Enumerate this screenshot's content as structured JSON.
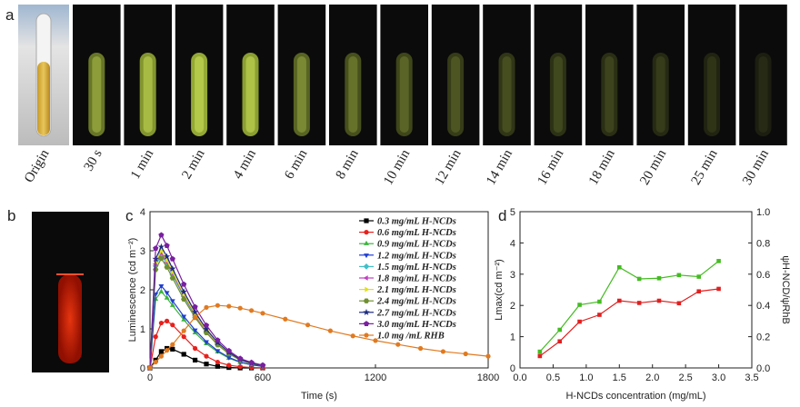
{
  "panel_labels": [
    "a",
    "b",
    "c",
    "d"
  ],
  "photo_labels": [
    "Origin",
    "30 s",
    "1 min",
    "2 min",
    "4 min",
    "6 min",
    "8 min",
    "10 min",
    "12 min",
    "14 min",
    "16 min",
    "18 min",
    "20 min",
    "25 min",
    "30 min"
  ],
  "chart_data": [
    {
      "type": "line",
      "xlabel": "Time (s)",
      "ylabel": "Luminescence (cd m⁻²)",
      "x": [
        0,
        30,
        60,
        90,
        120,
        180,
        240,
        300,
        360,
        420,
        480,
        540,
        600,
        720,
        840,
        960,
        1080,
        1200,
        1320,
        1440,
        1560,
        1680,
        1800
      ],
      "xlim": [
        0,
        1800
      ],
      "xticks": [
        0,
        600,
        1200,
        1800
      ],
      "ylim": [
        0,
        4
      ],
      "yticks": [
        0,
        1,
        2,
        3,
        4
      ],
      "series": [
        {
          "name": "0.3 mg/mL H-NCDs",
          "color": "#000000",
          "marker": "square",
          "values": [
            0,
            0.2,
            0.42,
            0.5,
            0.48,
            0.35,
            0.2,
            0.1,
            0.04,
            0.01,
            0,
            0,
            0,
            null,
            null,
            null,
            null,
            null,
            null,
            null,
            null,
            null,
            null
          ]
        },
        {
          "name": "0.6 mg/mL H-NCDs",
          "color": "#e8201c",
          "marker": "circle",
          "values": [
            0,
            0.8,
            1.15,
            1.2,
            1.1,
            0.8,
            0.5,
            0.3,
            0.15,
            0.07,
            0.03,
            0.01,
            0,
            null,
            null,
            null,
            null,
            null,
            null,
            null,
            null,
            null,
            null
          ]
        },
        {
          "name": "0.9 mg/mL H-NCDs",
          "color": "#3cb43c",
          "marker": "triangle-up",
          "values": [
            0,
            1.76,
            1.95,
            1.79,
            1.6,
            1.23,
            0.9,
            0.62,
            0.41,
            0.25,
            0.14,
            0.08,
            0.04,
            null,
            null,
            null,
            null,
            null,
            null,
            null,
            null,
            null,
            null
          ]
        },
        {
          "name": "1.2 mg/mL H-NCDs",
          "color": "#1f3fd0",
          "marker": "triangle-down",
          "values": [
            0,
            1.89,
            2.1,
            1.93,
            1.72,
            1.32,
            0.97,
            0.67,
            0.44,
            0.27,
            0.15,
            0.08,
            0.04,
            null,
            null,
            null,
            null,
            null,
            null,
            null,
            null,
            null,
            null
          ]
        },
        {
          "name": "1.5 mg/mL H-NCDs",
          "color": "#40c0c8",
          "marker": "diamond",
          "values": [
            0,
            2.61,
            2.9,
            2.67,
            2.38,
            1.83,
            1.33,
            0.93,
            0.61,
            0.38,
            0.2,
            0.12,
            0.06,
            null,
            null,
            null,
            null,
            null,
            null,
            null,
            null,
            null,
            null
          ]
        },
        {
          "name": "1.8 mg/mL H-NCDs",
          "color": "#c040c0",
          "marker": "triangle-left",
          "values": [
            0,
            2.66,
            2.95,
            2.71,
            2.42,
            1.86,
            1.36,
            0.94,
            0.62,
            0.38,
            0.21,
            0.12,
            0.06,
            null,
            null,
            null,
            null,
            null,
            null,
            null,
            null,
            null,
            null
          ]
        },
        {
          "name": "2.1 mg/mL H-NCDs",
          "color": "#e0e020",
          "marker": "triangle-right",
          "values": [
            0,
            2.7,
            3,
            2.76,
            2.46,
            1.89,
            1.38,
            0.96,
            0.63,
            0.39,
            0.21,
            0.12,
            0.06,
            null,
            null,
            null,
            null,
            null,
            null,
            null,
            null,
            null,
            null
          ]
        },
        {
          "name": "2.4 mg/mL H-NCDs",
          "color": "#6f8f30",
          "marker": "hexagon",
          "values": [
            0,
            2.52,
            2.8,
            2.58,
            2.3,
            1.76,
            1.29,
            0.9,
            0.59,
            0.36,
            0.2,
            0.11,
            0.06,
            null,
            null,
            null,
            null,
            null,
            null,
            null,
            null,
            null,
            null
          ]
        },
        {
          "name": "2.7 mg/mL H-NCDs",
          "color": "#1a2a80",
          "marker": "star",
          "values": [
            0,
            2.79,
            3.1,
            2.85,
            2.54,
            1.95,
            1.43,
            0.99,
            0.65,
            0.4,
            0.22,
            0.12,
            0.06,
            null,
            null,
            null,
            null,
            null,
            null,
            null,
            null,
            null,
            null
          ]
        },
        {
          "name": "3.0 mg/mL H-NCDs",
          "color": "#7a1fa0",
          "marker": "pentagon",
          "values": [
            0,
            3.06,
            3.4,
            3.13,
            2.79,
            2.14,
            1.56,
            1.09,
            0.71,
            0.44,
            0.24,
            0.14,
            0.07,
            null,
            null,
            null,
            null,
            null,
            null,
            null,
            null,
            null,
            null
          ]
        },
        {
          "name": "1.0 mg /mL RHB",
          "color": "#e07a20",
          "marker": "circle",
          "values": [
            0,
            0.15,
            0.3,
            0.45,
            0.6,
            0.95,
            1.3,
            1.55,
            1.6,
            1.58,
            1.53,
            1.47,
            1.4,
            1.25,
            1.1,
            0.95,
            0.82,
            0.7,
            0.6,
            0.5,
            0.42,
            0.36,
            0.3
          ]
        }
      ]
    },
    {
      "type": "line",
      "xlabel": "H-NCDs concentration (mg/mL)",
      "ylabel": "Lmax(cd m⁻²)",
      "y2label": "ψH-NCD/ψRhB",
      "x": [
        0.3,
        0.6,
        0.9,
        1.2,
        1.5,
        1.8,
        2.1,
        2.4,
        2.7,
        3
      ],
      "xlim": [
        0,
        3.5
      ],
      "xticks": [
        {
          "value": 0,
          "label": "0.0"
        },
        0.5,
        {
          "value": 1,
          "label": "1.0"
        },
        1.5,
        {
          "value": 2,
          "label": "2.0"
        },
        2.5,
        {
          "value": 3,
          "label": "3.0"
        },
        3.5
      ],
      "ylim": [
        0,
        5
      ],
      "yticks": [
        0,
        1,
        2,
        3,
        4,
        5
      ],
      "y2lim": [
        0,
        1
      ],
      "y2ticks": [
        {
          "value": 0,
          "label": "0.0"
        },
        0.2,
        0.4,
        0.6,
        0.8,
        {
          "value": 1,
          "label": "1.0"
        }
      ],
      "series": [
        {
          "color": "#e02020",
          "marker": "square",
          "values": [
            0.38,
            0.85,
            1.48,
            1.7,
            2.15,
            2.08,
            2.15,
            2.07,
            2.45,
            2.53
          ]
        },
        {
          "color": "#44bb22",
          "marker": "square",
          "axis": "y2",
          "values": [
            0.104,
            0.244,
            0.404,
            0.424,
            0.644,
            0.57,
            0.574,
            0.594,
            0.584,
            0.684
          ]
        }
      ]
    }
  ]
}
